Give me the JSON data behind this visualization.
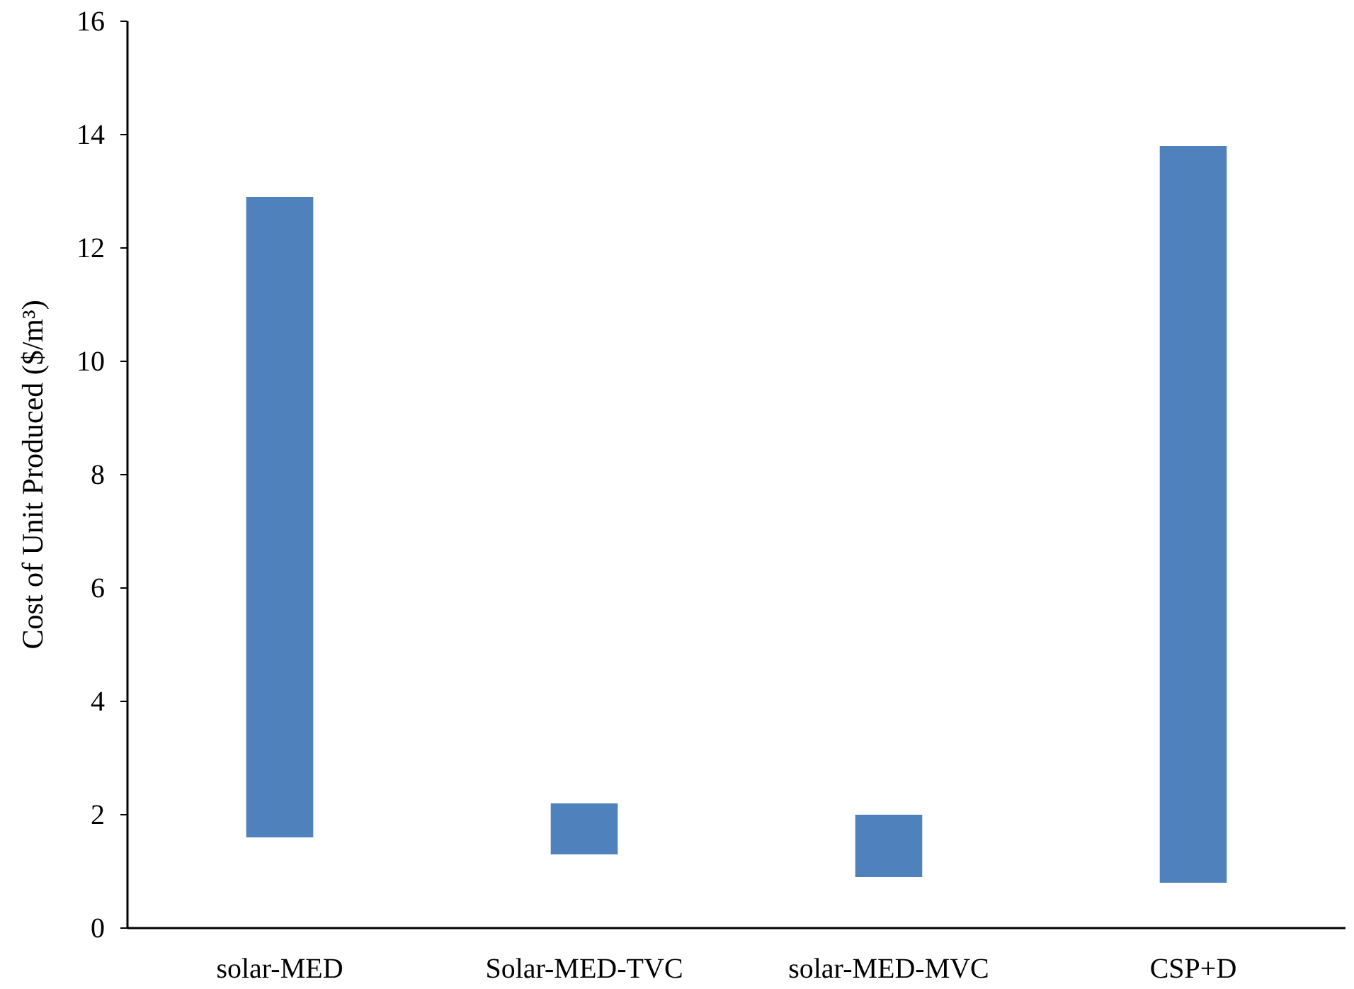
{
  "chart_data": {
    "type": "bar",
    "ylabel": "Cost of Unit Produced ($/m³)",
    "categories": [
      "solar-MED",
      "Solar-MED-TVC",
      "solar-MED-MVC",
      "CSP+D"
    ],
    "values": [
      11.3,
      0.9,
      1.1,
      13.0
    ],
    "base": [
      1.6,
      1.3,
      0.9,
      0.8
    ],
    "color": "#4f81bd",
    "ylim": [
      0,
      16
    ],
    "yticks": [
      0,
      2,
      4,
      6,
      8,
      10,
      12,
      14,
      16
    ],
    "grid": false
  }
}
